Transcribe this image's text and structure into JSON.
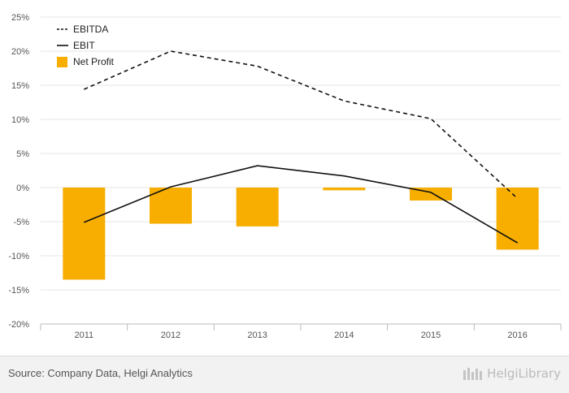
{
  "chart_data": {
    "type": "bar",
    "categories": [
      "2011",
      "2012",
      "2013",
      "2014",
      "2015",
      "2016"
    ],
    "series": [
      {
        "name": "EBITDA",
        "kind": "line",
        "style": "dashed",
        "color": "#111111",
        "values": [
          14.4,
          20.0,
          17.8,
          12.7,
          10.1,
          -1.6
        ]
      },
      {
        "name": "EBIT",
        "kind": "line",
        "style": "solid",
        "color": "#111111",
        "values": [
          -5.1,
          0.1,
          3.2,
          1.7,
          -0.7,
          -8.1
        ]
      },
      {
        "name": "Net Profit",
        "kind": "bar",
        "color": "#F7AE00",
        "values": [
          -13.5,
          -5.3,
          -5.7,
          -0.4,
          -1.9,
          -9.1
        ]
      }
    ],
    "y_ticks": [
      "25%",
      "20%",
      "15%",
      "10%",
      "5%",
      "0%",
      "-5%",
      "-10%",
      "-15%",
      "-20%"
    ],
    "ylim": [
      -20,
      25
    ],
    "grid": true,
    "legend_position": "top-left"
  },
  "footer": {
    "source": "Source: Company Data, Helgi Analytics",
    "brand": "HelgiLibrary"
  }
}
